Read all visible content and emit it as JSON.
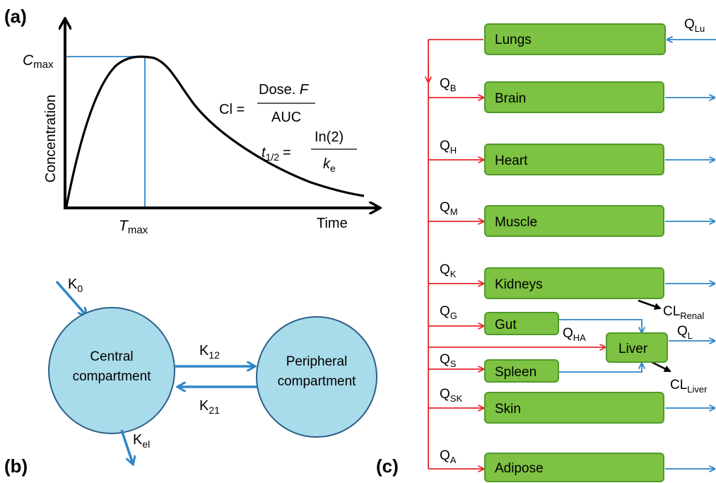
{
  "panel_a": {
    "label": "(a)",
    "ylabel": "Concentration",
    "xlabel": "Time",
    "cmax_main": "C",
    "cmax_sub": "max",
    "tmax_main": "T",
    "tmax_sub": "max",
    "cl_lhs": "Cl =",
    "cl_num_main": "Dose.",
    "cl_num_italic": "F",
    "cl_den": "AUC",
    "thalf_t": "t",
    "thalf_sub": "1/2",
    "thalf_eq": "=",
    "thalf_num": "In(2)",
    "thalf_den_main": "k",
    "thalf_den_sub": "e"
  },
  "panel_b": {
    "label": "(b)",
    "k0_main": "K",
    "k0_sub": "0",
    "central_l1": "Central",
    "central_l2": "compartment",
    "peripheral_l1": "Peripheral",
    "peripheral_l2": "compartment",
    "k12_main": "K",
    "k12_sub": "12",
    "k21_main": "K",
    "k21_sub": "21",
    "kel_main": "K",
    "kel_sub": "el"
  },
  "panel_c": {
    "label": "(c)",
    "organs": {
      "lungs": "Lungs",
      "brain": "Brain",
      "heart": "Heart",
      "muscle": "Muscle",
      "kidneys": "Kidneys",
      "gut": "Gut",
      "liver": "Liver",
      "spleen": "Spleen",
      "skin": "Skin",
      "adipose": "Adipose"
    },
    "flows": {
      "q_lu": {
        "main": "Q",
        "sub": "Lu"
      },
      "q_b": {
        "main": "Q",
        "sub": "B"
      },
      "q_h": {
        "main": "Q",
        "sub": "H"
      },
      "q_m": {
        "main": "Q",
        "sub": "M"
      },
      "q_k": {
        "main": "Q",
        "sub": "K"
      },
      "q_g": {
        "main": "Q",
        "sub": "G"
      },
      "q_ha": {
        "main": "Q",
        "sub": "HA"
      },
      "q_l": {
        "main": "Q",
        "sub": "L"
      },
      "q_s": {
        "main": "Q",
        "sub": "S"
      },
      "q_sk": {
        "main": "Q",
        "sub": "SK"
      },
      "q_a": {
        "main": "Q",
        "sub": "A"
      }
    },
    "cl_renal": {
      "main": "CL",
      "sub": "Renal"
    },
    "cl_liver": {
      "main": "CL",
      "sub": "Liver"
    }
  },
  "colors": {
    "organ_fill": "#7dc242",
    "organ_stroke": "#4f9a2a",
    "arterial": "#e8262b",
    "venous": "#2e86c8",
    "compartment_fill": "#a9dcea",
    "compartment_stroke": "#2c5f8a",
    "line": "#000000"
  }
}
